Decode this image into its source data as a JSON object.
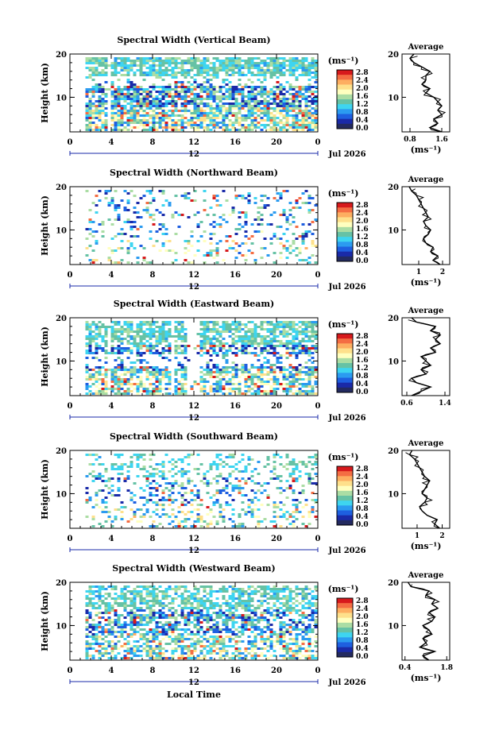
{
  "figure": {
    "bottom_label": "Local Time",
    "colorbar_unit": "(ms⁻¹)",
    "colorbar_ticks": [
      "2.8",
      "2.4",
      "2.0",
      "1.6",
      "1.2",
      "0.8",
      "0.4",
      "0.0"
    ],
    "colorbar_colors": [
      "#d7191c",
      "#f46d43",
      "#fdae61",
      "#fee08b",
      "#ffffbf",
      "#abdda4",
      "#66c2a5",
      "#3ed5f0",
      "#2b9bf0",
      "#1e5fe0",
      "#1a2aa8",
      "#232a60"
    ]
  },
  "chart_data": [
    {
      "type": "heatmap",
      "title": "Spectral Width (Vertical Beam)",
      "xlabel": "",
      "ylabel": "Height (km)",
      "x_ticks": [
        "0",
        "4",
        "8",
        "12",
        "16",
        "20",
        "0"
      ],
      "x_range": [
        0,
        24
      ],
      "y_ticks": [
        "20",
        "10"
      ],
      "y_range": [
        2,
        20
      ],
      "date_ticks": [
        "12"
      ],
      "date_label": "Jul 2026",
      "colorbar_range": [
        0.0,
        3.0
      ],
      "profile": {
        "title": "Average",
        "xlabel": "(ms⁻¹)",
        "x_ticks": [
          "0.8",
          "1.6"
        ],
        "x_range": [
          0.6,
          1.8
        ],
        "y_ticks": [
          "20",
          "10"
        ],
        "heights": [
          2,
          3,
          4,
          5,
          6,
          7,
          8,
          9,
          10,
          11,
          12,
          13,
          14,
          15,
          16,
          17,
          18,
          19,
          20
        ],
        "values": [
          1.6,
          1.3,
          1.5,
          1.4,
          1.6,
          1.5,
          1.6,
          1.5,
          1.4,
          1.2,
          1.3,
          1.1,
          1.2,
          1.2,
          1.3,
          1.1,
          0.9,
          0.8,
          0.9
        ]
      }
    },
    {
      "type": "heatmap",
      "title": "Spectral Width (Northward Beam)",
      "xlabel": "",
      "ylabel": "Height (km)",
      "x_ticks": [
        "0",
        "4",
        "8",
        "12",
        "16",
        "20",
        "0"
      ],
      "x_range": [
        0,
        24
      ],
      "y_ticks": [
        "20",
        "10"
      ],
      "y_range": [
        2,
        20
      ],
      "date_ticks": [
        "12"
      ],
      "date_label": "Jul 2026",
      "colorbar_range": [
        0.0,
        3.0
      ],
      "profile": {
        "title": "Average",
        "xlabel": "(ms⁻¹)",
        "x_ticks": [
          "1",
          "2"
        ],
        "x_range": [
          0.3,
          2.3
        ],
        "y_ticks": [
          "20",
          "10"
        ],
        "heights": [
          2,
          3,
          4,
          5,
          6,
          7,
          8,
          9,
          10,
          11,
          12,
          13,
          14,
          15,
          16,
          17,
          18,
          19,
          20
        ],
        "values": [
          1.9,
          1.6,
          1.8,
          1.5,
          1.6,
          1.3,
          1.2,
          1.4,
          1.5,
          1.3,
          1.2,
          1.4,
          1.3,
          1.2,
          1.1,
          1.0,
          0.9,
          0.7,
          0.6
        ]
      }
    },
    {
      "type": "heatmap",
      "title": "Spectral Width (Eastward Beam)",
      "xlabel": "",
      "ylabel": "Height (km)",
      "x_ticks": [
        "0",
        "4",
        "8",
        "12",
        "16",
        "20",
        "0"
      ],
      "x_range": [
        0,
        24
      ],
      "y_ticks": [
        "20",
        "10"
      ],
      "y_range": [
        2,
        20
      ],
      "date_ticks": [
        "12"
      ],
      "date_label": "Jul 2026",
      "colorbar_range": [
        0.0,
        3.0
      ],
      "profile": {
        "title": "Average",
        "xlabel": "",
        "x_ticks": [
          "0.6",
          "1.4"
        ],
        "x_range": [
          0.5,
          1.5
        ],
        "y_ticks": [
          "20",
          "10"
        ],
        "heights": [
          2,
          3,
          4,
          5,
          6,
          7,
          8,
          9,
          10,
          11,
          12,
          13,
          14,
          15,
          16,
          17,
          18,
          19,
          20
        ],
        "values": [
          0.7,
          0.9,
          1.1,
          0.8,
          0.7,
          1.0,
          0.9,
          1.1,
          1.0,
          0.9,
          1.2,
          1.1,
          1.3,
          1.2,
          1.3,
          1.1,
          1.2,
          0.8,
          0.7
        ]
      }
    },
    {
      "type": "heatmap",
      "title": "Spectral Width (Southward Beam)",
      "xlabel": "",
      "ylabel": "Height (km)",
      "x_ticks": [
        "0",
        "4",
        "8",
        "12",
        "16",
        "20",
        "0"
      ],
      "x_range": [
        0,
        24
      ],
      "y_ticks": [
        "20",
        "10"
      ],
      "y_range": [
        2,
        20
      ],
      "date_ticks": [
        "12"
      ],
      "date_label": "Jul 2026",
      "colorbar_range": [
        0.0,
        3.0
      ],
      "profile": {
        "title": "Average",
        "xlabel": "(ms⁻¹)",
        "x_ticks": [
          "1",
          "2"
        ],
        "x_range": [
          0.4,
          2.3
        ],
        "y_ticks": [
          "20",
          "10"
        ],
        "heights": [
          2,
          3,
          4,
          5,
          6,
          7,
          8,
          9,
          10,
          11,
          12,
          13,
          14,
          15,
          16,
          17,
          18,
          19,
          20
        ],
        "values": [
          1.9,
          1.7,
          1.8,
          1.4,
          1.2,
          1.1,
          1.3,
          1.4,
          1.2,
          1.3,
          1.4,
          1.5,
          1.3,
          1.2,
          1.1,
          1.0,
          0.9,
          0.7,
          0.8
        ]
      }
    },
    {
      "type": "heatmap",
      "title": "Spectral Width (Westward Beam)",
      "xlabel": "",
      "ylabel": "Height (km)",
      "x_ticks": [
        "0",
        "4",
        "8",
        "12",
        "16",
        "20",
        "0"
      ],
      "x_range": [
        0,
        24
      ],
      "y_ticks": [
        "20",
        "10"
      ],
      "y_range": [
        2,
        20
      ],
      "date_ticks": [
        "12"
      ],
      "date_label": "Jul 2026",
      "colorbar_range": [
        0.0,
        3.0
      ],
      "profile": {
        "title": "Average",
        "xlabel": "(ms⁻¹)",
        "x_ticks": [
          "0.4",
          "1.8"
        ],
        "x_range": [
          0.3,
          1.9
        ],
        "y_ticks": [
          "20",
          "10"
        ],
        "heights": [
          2,
          3,
          4,
          5,
          6,
          7,
          8,
          9,
          10,
          11,
          12,
          13,
          14,
          15,
          16,
          17,
          18,
          19,
          20
        ],
        "values": [
          1.2,
          1.0,
          1.4,
          0.9,
          1.1,
          1.0,
          1.3,
          1.2,
          1.0,
          1.3,
          1.4,
          1.2,
          1.5,
          1.3,
          1.4,
          1.1,
          1.2,
          0.6,
          0.5
        ]
      }
    }
  ]
}
